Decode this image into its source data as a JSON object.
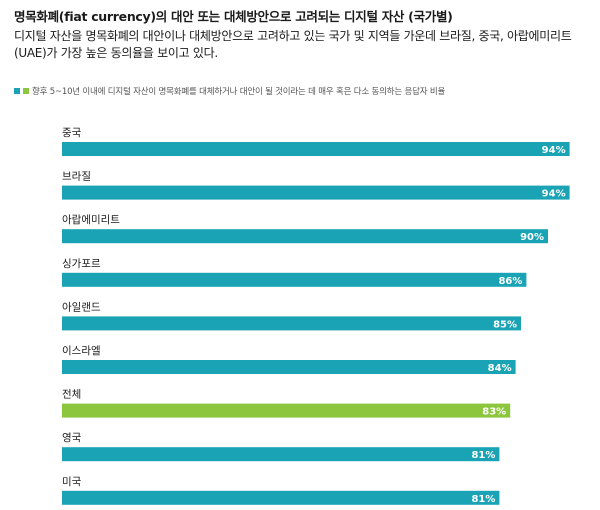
{
  "title": "명목화폐(fiat currency)의 대안 또는 대체방안으로 고려되는 디지털 자산 (국가별)",
  "subtitle": "디지털 자산을 명목화폐의 대안이나 대체방안으로 고려하고 있는 국가 및 지역들 가운데 브라질, 중국, 아랍에미리트(UAE)가 가장 높은 동의율을 보이고 있다.",
  "legend_text": "향후 5~10년 이내에 디지털 자산이 명목화폐를 대체하거나 대안이 될 것이라는 데 매우 혹은 다소 동의하는 응답자 비율",
  "colors": {
    "bar": "#1aa3b4",
    "highlight": "#8cc63f",
    "text_dark": "#1a1a1a"
  },
  "chart_data": {
    "type": "bar",
    "orientation": "horizontal",
    "categories": [
      "중국",
      "브라질",
      "아랍에미리트",
      "싱가포르",
      "아일랜드",
      "이스라엘",
      "전체",
      "영국",
      "미국"
    ],
    "values": [
      94,
      94,
      90,
      86,
      85,
      84,
      83,
      81,
      81
    ],
    "data_labels": [
      "94%",
      "94%",
      "90%",
      "86%",
      "85%",
      "84%",
      "83%",
      "81%",
      "81%"
    ],
    "highlight_category": "전체",
    "xlim": [
      0,
      100
    ]
  }
}
